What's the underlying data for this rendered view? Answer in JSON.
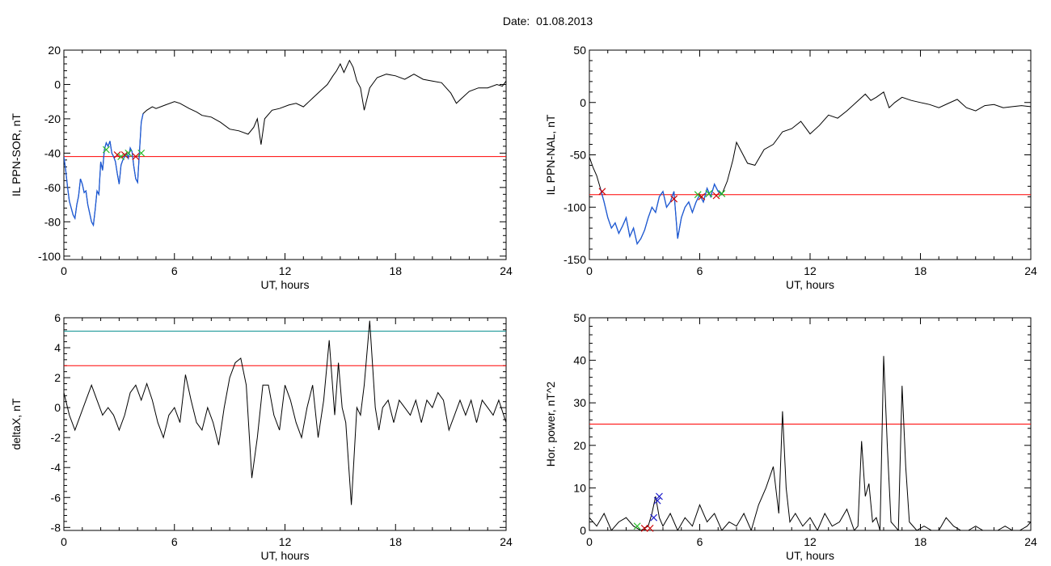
{
  "title": "Date:  01.08.2013",
  "colors": {
    "threshold_red": "#ff0000",
    "threshold_teal": "#008b8b",
    "trace": "#000000",
    "highlight": "#1e5bd8",
    "marker_red": "#cc0000",
    "marker_green": "#22bb22",
    "marker_blue": "#2222cc"
  },
  "chart_data": [
    {
      "type": "line",
      "ylabel": "IL PPN-SOR, nT",
      "xlabel": "UT, hours",
      "xlim": [
        0,
        24
      ],
      "ylim": [
        -102,
        20
      ],
      "xticks": [
        0,
        6,
        12,
        18,
        24
      ],
      "yticks": [
        -100,
        -80,
        -60,
        -40,
        -20,
        0,
        20
      ],
      "threshold": -42,
      "threshold_color": "#ff0000",
      "highlight_range": [
        0,
        4.3
      ],
      "series": [
        {
          "x": [
            0,
            0.1,
            0.2,
            0.3,
            0.4,
            0.5,
            0.6,
            0.7,
            0.8,
            0.9,
            1.0,
            1.1,
            1.2,
            1.3,
            1.4,
            1.5,
            1.6,
            1.7,
            1.8,
            1.9,
            2.0,
            2.1,
            2.2,
            2.3,
            2.4,
            2.5,
            2.6,
            2.7,
            2.8,
            2.9,
            3.0,
            3.1,
            3.2,
            3.3,
            3.4,
            3.5,
            3.6,
            3.7,
            3.8,
            3.9,
            4.0,
            4.1,
            4.2,
            4.3,
            4.5,
            4.8,
            5.0,
            5.5,
            6.0,
            6.3,
            6.8,
            7.2,
            7.5,
            8.0,
            8.5,
            9.0,
            9.5,
            10.0,
            10.3,
            10.5,
            10.7,
            10.9,
            11.3,
            11.7,
            12.2,
            12.6,
            13.0,
            13.5,
            14.0,
            14.3,
            14.6,
            14.8,
            15.0,
            15.2,
            15.5,
            15.7,
            15.9,
            16.1,
            16.3,
            16.6,
            17.0,
            17.5,
            18.0,
            18.5,
            19.0,
            19.5,
            20.0,
            20.5,
            21.0,
            21.3,
            21.6,
            22.0,
            22.5,
            23.0,
            23.5,
            23.8,
            24.0
          ],
          "y": [
            -42,
            -50,
            -60,
            -68,
            -72,
            -76,
            -78,
            -70,
            -65,
            -55,
            -58,
            -63,
            -62,
            -70,
            -75,
            -80,
            -82,
            -73,
            -62,
            -64,
            -45,
            -50,
            -38,
            -34,
            -36,
            -33,
            -40,
            -42,
            -45,
            -52,
            -58,
            -47,
            -44,
            -42,
            -40,
            -43,
            -37,
            -39,
            -48,
            -55,
            -57,
            -40,
            -22,
            -17,
            -15,
            -13,
            -14,
            -12,
            -10,
            -11,
            -14,
            -16,
            -18,
            -19,
            -22,
            -26,
            -27,
            -29,
            -25,
            -20,
            -35,
            -20,
            -15,
            -14,
            -12,
            -11,
            -13,
            -8,
            -3,
            0,
            5,
            8,
            12,
            7,
            14,
            10,
            2,
            -2,
            -15,
            -2,
            4,
            6,
            5,
            3,
            6,
            3,
            2,
            1,
            -5,
            -11,
            -8,
            -4,
            -2,
            -2,
            0,
            -1,
            2
          ]
        }
      ],
      "markers": [
        {
          "x": 2.3,
          "y": -38,
          "color": "#22bb22"
        },
        {
          "x": 2.9,
          "y": -41,
          "color": "#cc0000"
        },
        {
          "x": 3.1,
          "y": -42,
          "color": "#22bb22"
        },
        {
          "x": 3.3,
          "y": -41,
          "color": "#cc0000"
        },
        {
          "x": 3.5,
          "y": -40,
          "color": "#22bb22"
        },
        {
          "x": 3.9,
          "y": -42,
          "color": "#cc0000"
        },
        {
          "x": 4.2,
          "y": -40,
          "color": "#22bb22"
        }
      ]
    },
    {
      "type": "line",
      "ylabel": "IL PPN-NAL, nT",
      "xlabel": "UT, hours",
      "xlim": [
        0,
        24
      ],
      "ylim": [
        -150,
        50
      ],
      "xticks": [
        0,
        6,
        12,
        18,
        24
      ],
      "yticks": [
        -150,
        -100,
        -50,
        0,
        50
      ],
      "threshold": -88,
      "threshold_color": "#ff0000",
      "highlight_range": [
        0.6,
        7.3
      ],
      "series": [
        {
          "x": [
            0,
            0.2,
            0.4,
            0.6,
            0.8,
            1.0,
            1.2,
            1.4,
            1.6,
            1.8,
            2.0,
            2.2,
            2.4,
            2.6,
            2.8,
            3.0,
            3.2,
            3.4,
            3.6,
            3.8,
            4.0,
            4.2,
            4.4,
            4.6,
            4.8,
            5.0,
            5.2,
            5.4,
            5.6,
            5.8,
            6.0,
            6.2,
            6.4,
            6.6,
            6.8,
            7.0,
            7.2,
            7.5,
            7.8,
            8.0,
            8.3,
            8.6,
            9.0,
            9.5,
            10.0,
            10.5,
            11.0,
            11.5,
            12.0,
            12.5,
            13.0,
            13.5,
            14.0,
            14.5,
            15.0,
            15.3,
            15.6,
            16.0,
            16.3,
            16.6,
            17.0,
            17.5,
            18.0,
            18.5,
            19.0,
            19.5,
            20.0,
            20.5,
            21.0,
            21.5,
            22.0,
            22.5,
            23.0,
            23.5,
            24.0
          ],
          "y": [
            -52,
            -62,
            -70,
            -82,
            -95,
            -110,
            -120,
            -115,
            -125,
            -118,
            -110,
            -128,
            -120,
            -135,
            -130,
            -122,
            -110,
            -100,
            -105,
            -90,
            -85,
            -100,
            -95,
            -85,
            -130,
            -110,
            -100,
            -95,
            -105,
            -95,
            -88,
            -95,
            -82,
            -90,
            -78,
            -85,
            -88,
            -75,
            -55,
            -38,
            -48,
            -58,
            -60,
            -45,
            -40,
            -28,
            -25,
            -18,
            -30,
            -22,
            -12,
            -15,
            -8,
            0,
            8,
            2,
            5,
            10,
            -5,
            0,
            5,
            2,
            0,
            -2,
            -5,
            -1,
            3,
            -5,
            -8,
            -3,
            -2,
            -5,
            -4,
            -3,
            -4
          ]
        }
      ],
      "markers": [
        {
          "x": 0.7,
          "y": -85,
          "color": "#cc0000"
        },
        {
          "x": 4.6,
          "y": -92,
          "color": "#cc0000"
        },
        {
          "x": 5.9,
          "y": -88,
          "color": "#22bb22"
        },
        {
          "x": 6.1,
          "y": -90,
          "color": "#cc0000"
        },
        {
          "x": 6.5,
          "y": -87,
          "color": "#22bb22"
        },
        {
          "x": 6.9,
          "y": -89,
          "color": "#cc0000"
        },
        {
          "x": 7.2,
          "y": -87,
          "color": "#22bb22"
        }
      ]
    },
    {
      "type": "line",
      "ylabel": "deltaX, nT",
      "xlabel": "UT, hours",
      "xlim": [
        0,
        24
      ],
      "ylim": [
        -8.2,
        6
      ],
      "xticks": [
        0,
        6,
        12,
        18,
        24
      ],
      "yticks": [
        -8,
        -6,
        -4,
        -2,
        0,
        2,
        4,
        6
      ],
      "thresholds": [
        {
          "value": 5.1,
          "color": "#008b8b"
        },
        {
          "value": 2.8,
          "color": "#ff0000"
        }
      ],
      "series": [
        {
          "x": [
            0,
            0.3,
            0.6,
            0.9,
            1.2,
            1.5,
            1.8,
            2.1,
            2.4,
            2.7,
            3.0,
            3.3,
            3.6,
            3.9,
            4.2,
            4.5,
            4.8,
            5.1,
            5.4,
            5.7,
            6.0,
            6.3,
            6.6,
            6.9,
            7.2,
            7.5,
            7.8,
            8.1,
            8.4,
            8.7,
            9.0,
            9.3,
            9.6,
            9.9,
            10.2,
            10.5,
            10.8,
            11.1,
            11.4,
            11.7,
            12.0,
            12.3,
            12.6,
            12.9,
            13.2,
            13.5,
            13.8,
            14.1,
            14.4,
            14.7,
            14.9,
            15.1,
            15.3,
            15.6,
            15.9,
            16.1,
            16.3,
            16.6,
            16.9,
            17.1,
            17.3,
            17.6,
            17.9,
            18.2,
            18.5,
            18.8,
            19.1,
            19.4,
            19.7,
            20.0,
            20.3,
            20.6,
            20.9,
            21.2,
            21.5,
            21.8,
            22.1,
            22.4,
            22.7,
            23.0,
            23.3,
            23.6,
            24.0
          ],
          "y": [
            1,
            -0.5,
            -1.5,
            -0.5,
            0.5,
            1.5,
            0.5,
            -0.5,
            0,
            -0.5,
            -1.5,
            -0.5,
            1,
            1.5,
            0.5,
            1.6,
            0.5,
            -1,
            -2,
            -0.5,
            0,
            -1,
            2.2,
            0.5,
            -1,
            -1.5,
            0,
            -1,
            -2.5,
            0,
            2,
            3,
            3.3,
            1.5,
            -4.7,
            -2,
            1.5,
            1.5,
            -0.5,
            -1.5,
            1.5,
            0.5,
            -1,
            -2,
            0,
            1.5,
            -2,
            0.5,
            4.5,
            -0.5,
            3,
            0,
            -1,
            -6.5,
            0,
            -0.5,
            1.5,
            5.8,
            0,
            -1.5,
            0,
            0.5,
            -1,
            0.5,
            0,
            -0.5,
            0.5,
            -1,
            0.5,
            0,
            1,
            0.5,
            -1.5,
            -0.5,
            0.5,
            -0.5,
            0.5,
            -1,
            0.5,
            0,
            -0.5,
            0.5,
            -1
          ]
        }
      ]
    },
    {
      "type": "line",
      "ylabel": "Hor. power, nT^2",
      "xlabel": "UT, hours",
      "xlim": [
        0,
        24
      ],
      "ylim": [
        0,
        50
      ],
      "xticks": [
        0,
        6,
        12,
        18,
        24
      ],
      "yticks": [
        0,
        10,
        20,
        30,
        40,
        50
      ],
      "threshold": 25,
      "threshold_color": "#ff0000",
      "series": [
        {
          "x": [
            0,
            0.4,
            0.8,
            1.2,
            1.6,
            2.0,
            2.4,
            2.8,
            3.2,
            3.4,
            3.6,
            3.8,
            4.0,
            4.4,
            4.8,
            5.2,
            5.6,
            6.0,
            6.4,
            6.8,
            7.2,
            7.6,
            8.0,
            8.4,
            8.8,
            9.2,
            9.6,
            10.0,
            10.3,
            10.5,
            10.7,
            10.9,
            11.2,
            11.6,
            12.0,
            12.4,
            12.8,
            13.2,
            13.6,
            14.0,
            14.4,
            14.6,
            14.8,
            15.0,
            15.2,
            15.4,
            15.6,
            15.8,
            16.0,
            16.2,
            16.4,
            16.6,
            16.8,
            17.0,
            17.2,
            17.4,
            17.8,
            18.2,
            18.6,
            19.0,
            19.4,
            19.8,
            20.2,
            20.6,
            21.0,
            21.4,
            21.8,
            22.2,
            22.6,
            23.0,
            23.4,
            23.8,
            24.0
          ],
          "y": [
            3,
            1,
            4,
            0,
            2,
            3,
            1,
            0,
            1,
            4,
            8,
            3,
            1,
            4,
            0,
            3,
            1,
            6,
            2,
            4,
            0,
            2,
            1,
            4,
            0,
            6,
            10,
            15,
            4,
            28,
            10,
            2,
            4,
            1,
            3,
            0,
            4,
            1,
            2,
            5,
            0,
            1,
            21,
            8,
            11,
            2,
            3,
            0,
            41,
            20,
            2,
            1,
            0,
            34,
            15,
            2,
            0,
            1,
            0,
            0,
            3,
            1,
            0,
            0,
            1,
            0,
            0,
            0,
            1,
            0,
            0,
            1,
            2
          ]
        }
      ],
      "markers": [
        {
          "x": 2.6,
          "y": 1,
          "color": "#22bb22"
        },
        {
          "x": 3.0,
          "y": 0.5,
          "color": "#cc0000"
        },
        {
          "x": 3.3,
          "y": 0.5,
          "color": "#cc0000"
        },
        {
          "x": 3.5,
          "y": 3,
          "color": "#2222cc"
        },
        {
          "x": 3.7,
          "y": 7,
          "color": "#2222cc"
        },
        {
          "x": 3.8,
          "y": 8,
          "color": "#2222cc"
        }
      ]
    }
  ]
}
